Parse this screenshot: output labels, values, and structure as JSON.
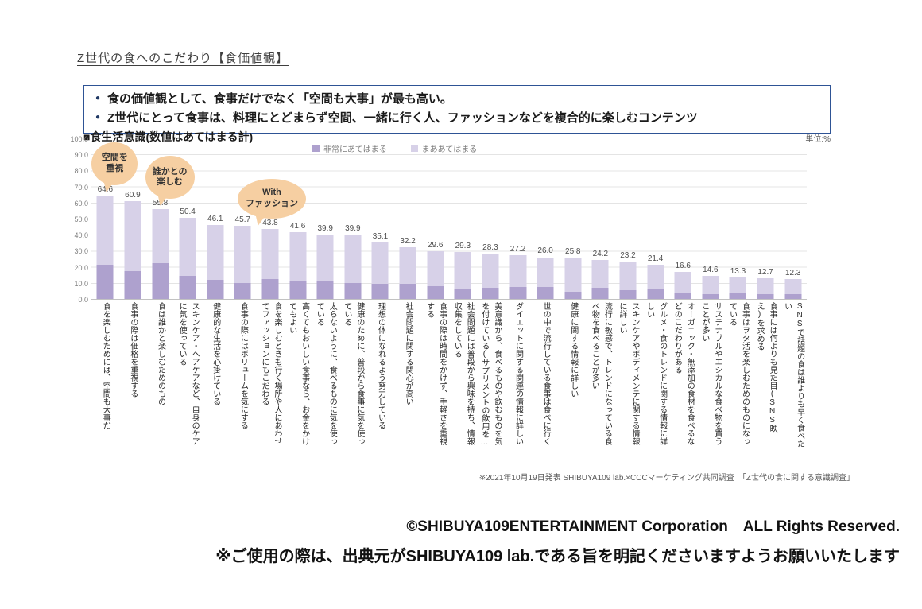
{
  "page_title": "Z世代の食へのこだわり【食価値観】",
  "summary": {
    "bullets": [
      "食の価値観として、食事だけでなく「空間も大事」が最も高い。",
      "Z世代にとって食事は、料理にとどまらず空間、一緒に行く人、ファッションなどを複合的に楽しむコンテンツ"
    ]
  },
  "chart": {
    "title": "■食生活意識(数値はあてはまる計)",
    "unit_label": "単位:%"
  },
  "chart_data": {
    "type": "bar",
    "stacked": true,
    "title": "■食生活意識(数値はあてはまる計)",
    "unit": "%",
    "ylim": [
      0,
      100
    ],
    "ytick_interval": 10,
    "grid": true,
    "legend_position": "top",
    "categories": [
      "食を楽しむためには、空間も大事だ",
      "食事の際は価格を重視する",
      "食は誰かと楽しむためのもの",
      "スキンケア・ヘアケアなど、自身のケアに気を使っている",
      "健康的な生活を心掛けている",
      "食事の際にはボリュームを気にする",
      "食を楽しむときも行く場所や人にあわせてファッションにもこだわる",
      "高くてもおいしい食事なら、お金をかけてもよい",
      "太らないように、食べるものに気を使っている",
      "健康のために、普段から食事に気を使っている",
      "理想の体になれるよう努力している",
      "社会問題に関する関心が高い",
      "食事の際は時間をかけず、手軽さを重視する",
      "社会問題には普段から興味を持ち、情報収集をしている",
      "美意識から、食べるものや飲むものを気を付けている(サプリメントの飲用を…",
      "ダイエットに関する関連の情報に詳しい",
      "世の中で流行している食事は食べに行く",
      "健康に関する情報に詳しい",
      "流行に敏感で、トレンドになっている食べ物を食べることが多い",
      "スキンケアやボディメンテに関する情報に詳しい",
      "グルメ・食のトレンドに関する情報に詳しい",
      "オーガニック・無添加の食材を食べるなどのこだわりがある",
      "サステナブルやエシカルな食べ物を買うことが多い",
      "食事はヲタ活を楽しむためのものになっている",
      "食事には何よりも見た目(SNS映え)を求める",
      "SNSで話題の食は誰よりも早く食べたい"
    ],
    "series": [
      {
        "name": "非常にあてはまる",
        "color": "#aea1ce",
        "values": [
          21.5,
          17.5,
          22.5,
          14.5,
          12.0,
          10.0,
          12.5,
          11.0,
          11.5,
          10.0,
          9.5,
          9.5,
          8.0,
          6.0,
          7.0,
          7.5,
          7.5,
          4.5,
          7.0,
          5.5,
          6.0,
          4.0,
          3.0,
          3.5,
          3.0,
          3.0
        ]
      },
      {
        "name": "まああてはまる",
        "color": "#d7d1e8",
        "values": [
          43.1,
          43.4,
          33.3,
          35.9,
          34.1,
          35.7,
          31.3,
          30.6,
          28.4,
          29.9,
          25.6,
          22.7,
          21.6,
          23.3,
          21.3,
          19.7,
          18.5,
          21.3,
          17.2,
          17.7,
          15.4,
          12.6,
          11.6,
          9.8,
          9.7,
          9.3
        ]
      }
    ],
    "totals": [
      64.6,
      60.9,
      55.8,
      50.4,
      46.1,
      45.7,
      43.8,
      41.6,
      39.9,
      39.9,
      35.1,
      32.2,
      29.6,
      29.3,
      28.3,
      27.2,
      26.0,
      25.8,
      24.2,
      23.2,
      21.4,
      16.6,
      14.6,
      13.3,
      12.7,
      12.3
    ],
    "callouts": [
      {
        "label": "空間を\n重視",
        "bar_index": 0
      },
      {
        "label": "誰かとの\n楽しむ",
        "bar_index": 2
      },
      {
        "label": "With\nファッション",
        "bar_index": 6
      }
    ]
  },
  "footnote": "※2021年10月19日発表 SHIBUYA109 lab.×CCCマーケティング共同調査　「Z世代の食に関する意識調査」",
  "footer": {
    "line1": "©SHIBUYA109ENTERTAINMENT Corporation　ALL Rights Reserved.",
    "line2": "※ご使用の際は、出典元がSHIBUYA109 lab.である旨を明記くださいますようお願いいたします"
  }
}
